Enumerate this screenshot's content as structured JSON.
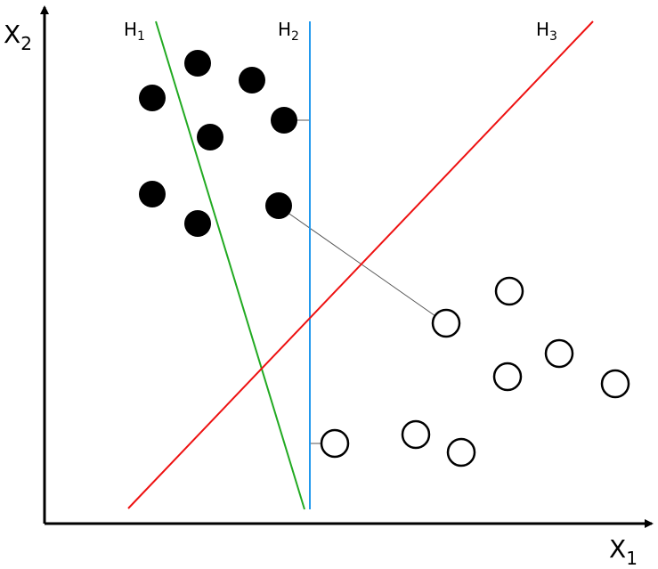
{
  "axes": {
    "y_label": {
      "main": "X",
      "sub": "2"
    },
    "x_label": {
      "main": "X",
      "sub": "1"
    }
  },
  "hyperplanes": [
    {
      "main": "H",
      "sub": "1"
    },
    {
      "main": "H",
      "sub": "2"
    },
    {
      "main": "H",
      "sub": "3"
    }
  ]
}
